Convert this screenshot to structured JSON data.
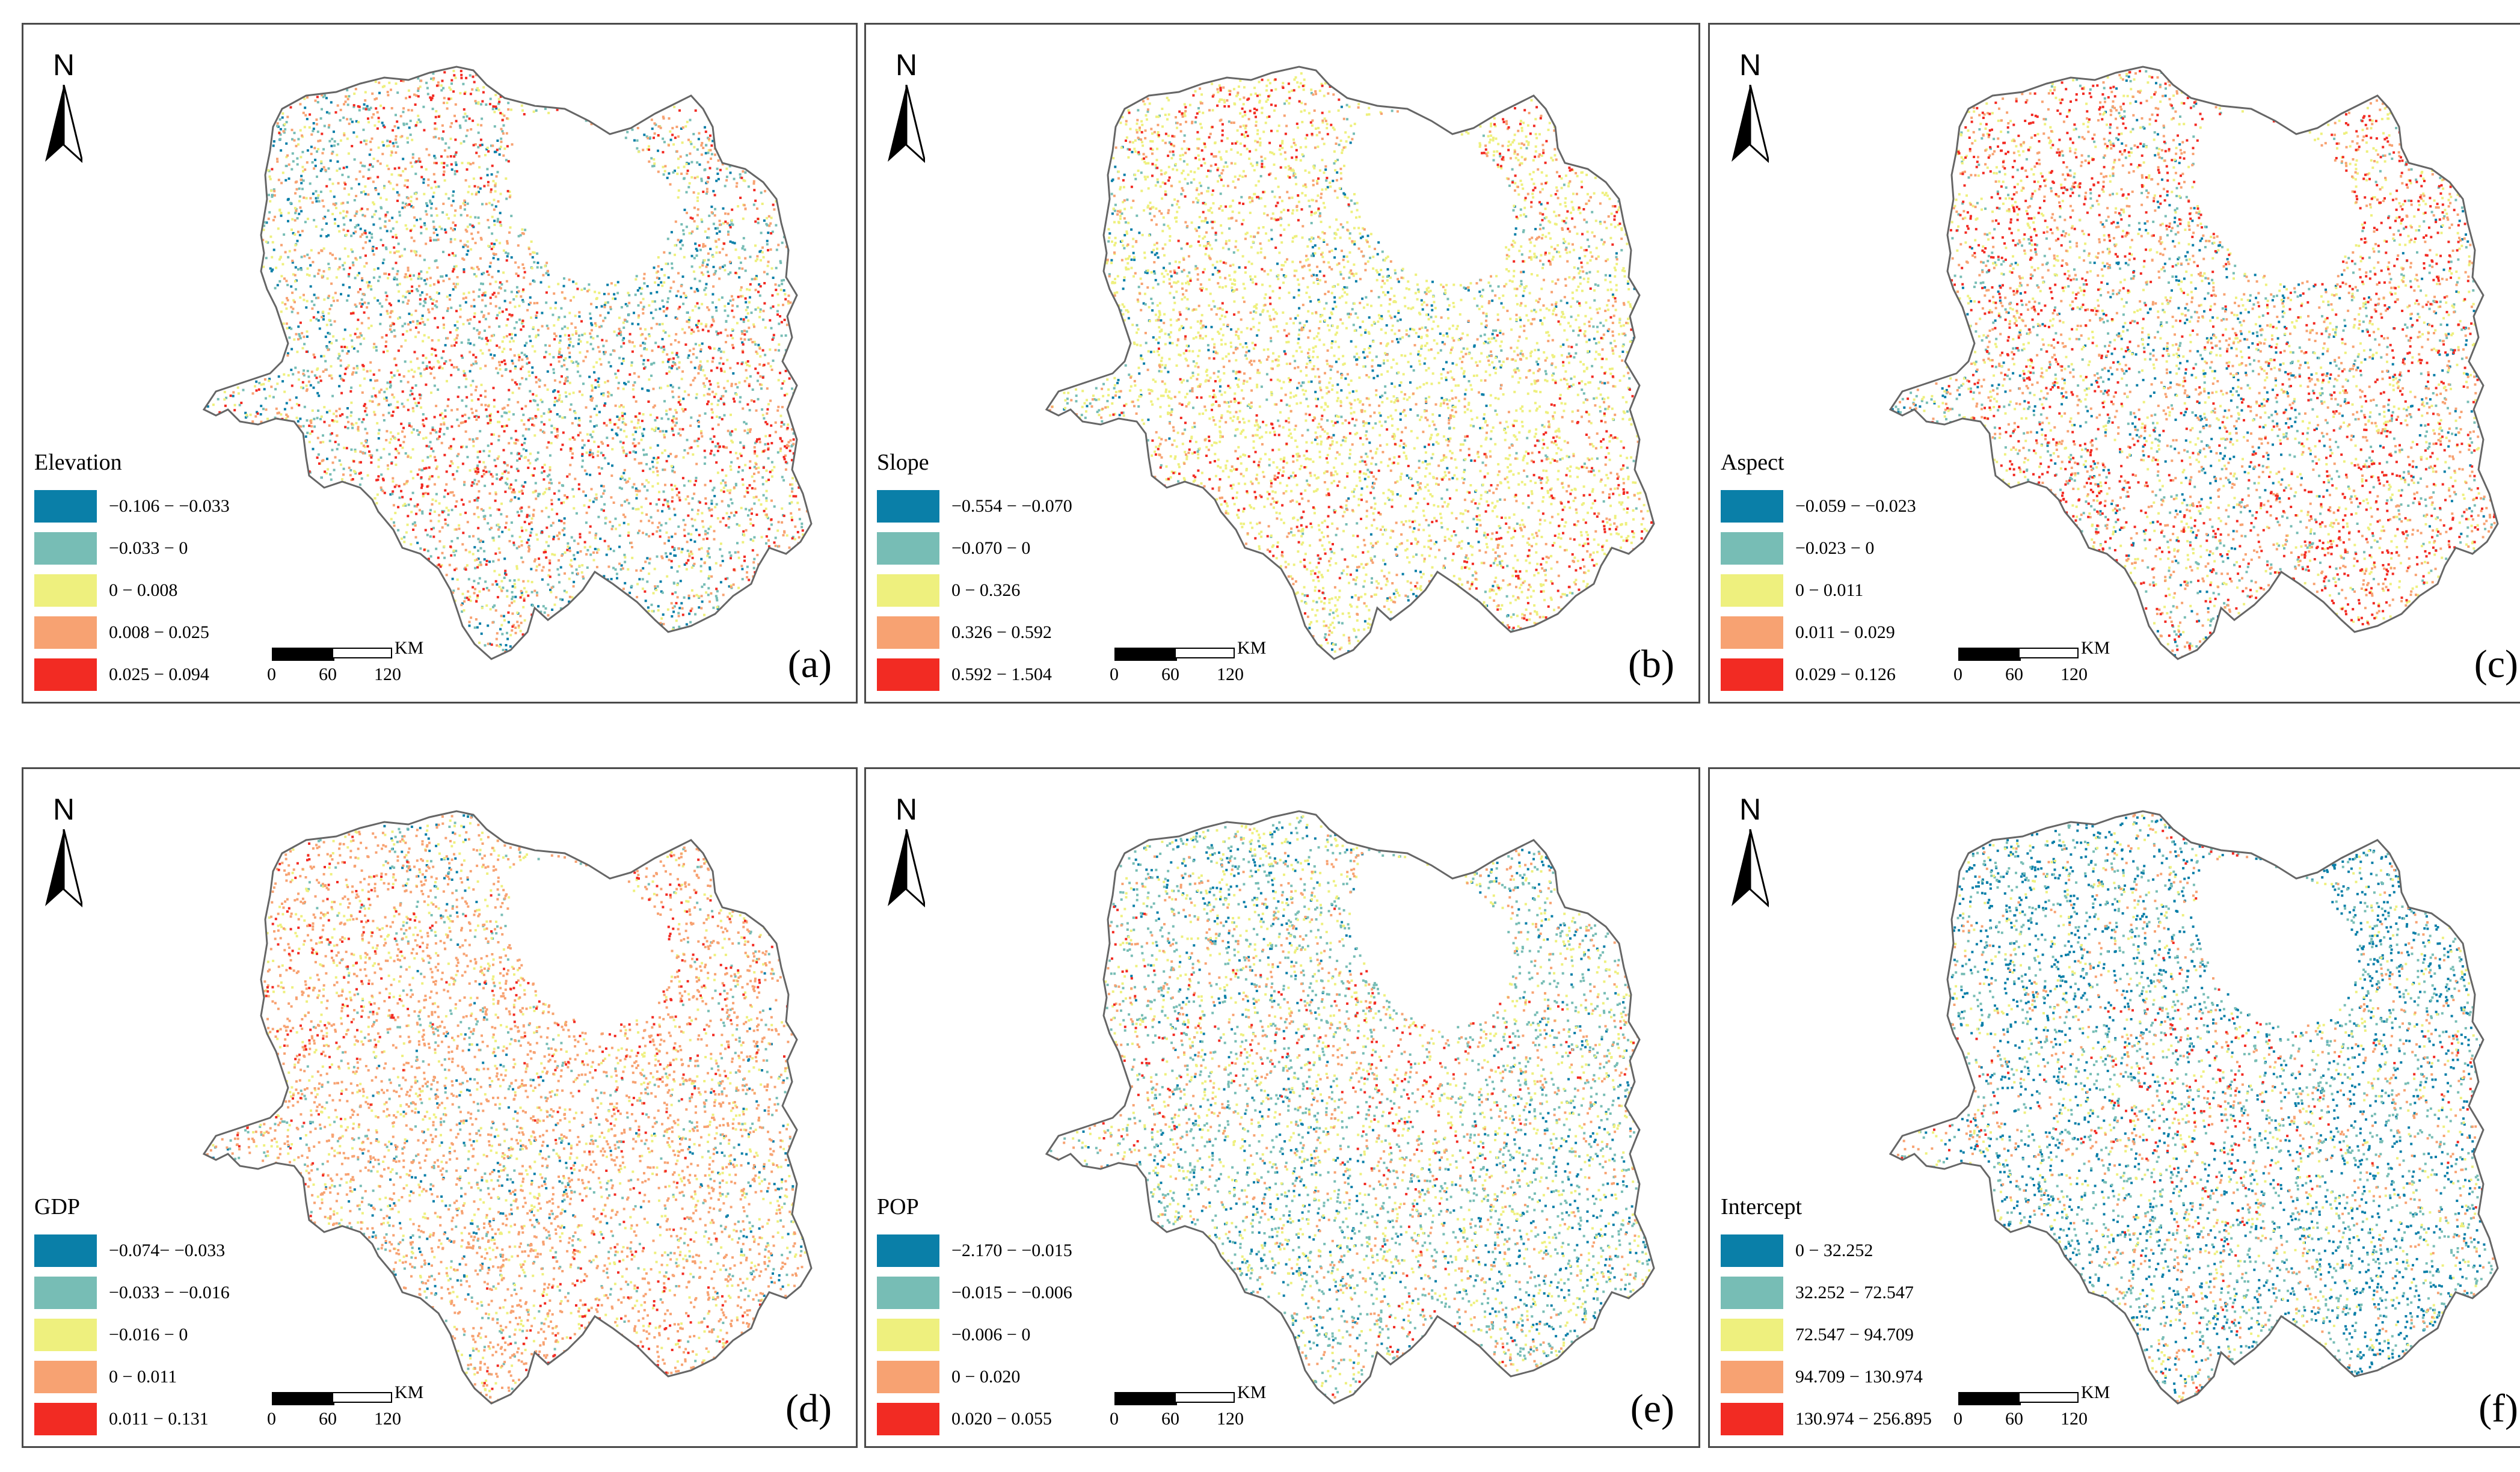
{
  "north_label": "N",
  "scale": {
    "unit": "KM",
    "ticks": [
      "0",
      "60",
      "120"
    ]
  },
  "colors": [
    "#0a7fa8",
    "#77bdb5",
    "#eef07e",
    "#f7a272",
    "#f22b23"
  ],
  "boundary_color": "#666666",
  "panels": [
    {
      "label": "(a)",
      "legend_title": "Elevation",
      "classes": [
        "−0.106 − −0.033",
        "−0.033 − 0",
        "0 − 0.008",
        "0.008 − 0.025",
        "0.025 − 0.094"
      ],
      "mix": [
        0.12,
        0.26,
        0.22,
        0.26,
        0.14
      ]
    },
    {
      "label": "(b)",
      "legend_title": "Slope",
      "classes": [
        "−0.554 − −0.070",
        "−0.070 − 0",
        "0 − 0.326",
        "0.326 − 0.592",
        "0.592 − 1.504"
      ],
      "mix": [
        0.07,
        0.1,
        0.55,
        0.2,
        0.08
      ]
    },
    {
      "label": "(c)",
      "legend_title": "Aspect",
      "classes": [
        "−0.059 − −0.023",
        "−0.023 − 0",
        "0 − 0.011",
        "0.011 − 0.029",
        "0.029 − 0.126"
      ],
      "mix": [
        0.1,
        0.16,
        0.24,
        0.28,
        0.22
      ]
    },
    {
      "label": "(d)",
      "legend_title": "GDP",
      "classes": [
        "−0.074− −0.033",
        "−0.033 − −0.016",
        "−0.016 − 0",
        "0 − 0.011",
        "0.011 − 0.131"
      ],
      "mix": [
        0.03,
        0.12,
        0.2,
        0.58,
        0.07
      ]
    },
    {
      "label": "(e)",
      "legend_title": "POP",
      "classes": [
        "−2.170 − −0.015",
        "−0.015 − −0.006",
        "−0.006 − 0",
        "0 − 0.020",
        "0.020 − 0.055"
      ],
      "mix": [
        0.12,
        0.38,
        0.26,
        0.2,
        0.04
      ]
    },
    {
      "label": "(f)",
      "legend_title": "Intercept",
      "classes": [
        "0 − 32.252",
        "32.252 − 72.547",
        "72.547 − 94.709",
        "94.709 − 130.974",
        "130.974 − 256.895"
      ],
      "mix": [
        0.36,
        0.3,
        0.14,
        0.16,
        0.04
      ]
    }
  ]
}
